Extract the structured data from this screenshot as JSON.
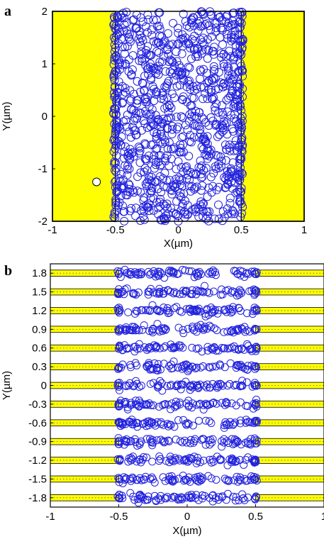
{
  "chart_data": [
    {
      "panel": "a",
      "type": "scatter",
      "xlabel": "X(µm)",
      "ylabel": "Y(µm)",
      "xlim": [
        -1,
        1
      ],
      "ylim": [
        -2,
        2
      ],
      "xticks": [
        "-1",
        "-0.5",
        "0",
        "0.5",
        "1"
      ],
      "yticks": [
        "-2",
        "-1",
        "0",
        "1",
        "2"
      ],
      "regions": [
        {
          "name": "left electrode",
          "x": [
            -1,
            -0.5
          ],
          "y": [
            -2,
            2
          ],
          "color": "#ffff00"
        },
        {
          "name": "right electrode",
          "x": [
            0.5,
            1
          ],
          "y": [
            -2,
            2
          ],
          "color": "#ffff00"
        }
      ],
      "marker": "open-circle",
      "marker_color": "#2222dd",
      "x_distribution": "uniform",
      "x_range": [
        -0.5,
        0.5
      ],
      "y_distribution": "uniform",
      "y_range": [
        -2,
        2
      ],
      "approx_points": 900,
      "edge_cluster_x": [
        -0.5,
        0.5
      ],
      "special_point": {
        "x": -0.65,
        "y": -1.25,
        "face": "#ffffff"
      }
    },
    {
      "panel": "b",
      "type": "scatter",
      "xlabel": "X(µm)",
      "ylabel": "Y(µm)",
      "xlim": [
        -1,
        1
      ],
      "ylim": [
        -1.95,
        1.95
      ],
      "xticks": [
        "-1",
        "-0.5",
        "0",
        "0.5",
        "1"
      ],
      "yticks": [
        "1.8",
        "1.5",
        "1.2",
        "0.9",
        "0.6",
        "0.3",
        "0",
        "-0.3",
        "-0.6",
        "-0.9",
        "-1.2",
        "-1.5",
        "-1.8"
      ],
      "stripe_y": [
        1.8,
        1.5,
        1.2,
        0.9,
        0.6,
        0.3,
        0,
        -0.3,
        -0.6,
        -0.9,
        -1.2,
        -1.5,
        -1.8
      ],
      "stripe_height": 0.1,
      "stripe_x_left": [
        -1,
        -0.5
      ],
      "stripe_x_right": [
        0.5,
        1
      ],
      "stripe_color": "#ffff00",
      "marker": "open-circle",
      "marker_color": "#2222dd",
      "x_range": [
        -0.5,
        0.5
      ],
      "row_jitter": 0.05,
      "approx_points_per_row": 70
    }
  ],
  "panel_labels": [
    "a",
    "b"
  ]
}
